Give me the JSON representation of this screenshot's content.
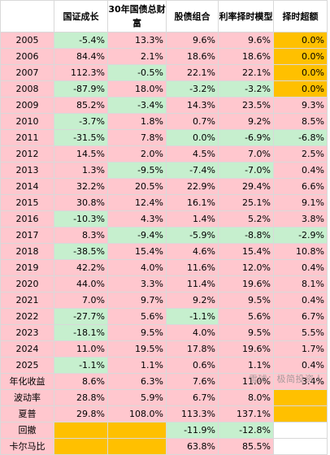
{
  "headers": [
    "",
    "国证成长",
    "30年国债总财富",
    "股债组合",
    "利率择时模型",
    "择时超额"
  ],
  "years": [
    {
      "year": "2005",
      "cells": [
        "-5.4%",
        "13.3%",
        "9.6%",
        "9.6%",
        "0.0%"
      ]
    },
    {
      "year": "2006",
      "cells": [
        "84.4%",
        "2.1%",
        "18.6%",
        "18.6%",
        "0.0%"
      ]
    },
    {
      "year": "2007",
      "cells": [
        "112.3%",
        "-0.5%",
        "22.1%",
        "22.1%",
        "0.0%"
      ]
    },
    {
      "year": "2008",
      "cells": [
        "-87.9%",
        "18.0%",
        "-3.2%",
        "-3.2%",
        "0.0%"
      ]
    },
    {
      "year": "2009",
      "cells": [
        "85.2%",
        "-3.4%",
        "14.3%",
        "23.5%",
        "9.3%"
      ]
    },
    {
      "year": "2010",
      "cells": [
        "-3.7%",
        "1.8%",
        "0.7%",
        "9.2%",
        "8.5%"
      ]
    },
    {
      "year": "2011",
      "cells": [
        "-31.5%",
        "7.8%",
        "0.0%",
        "-6.9%",
        "-6.8%"
      ]
    },
    {
      "year": "2012",
      "cells": [
        "14.5%",
        "2.0%",
        "4.5%",
        "7.0%",
        "2.5%"
      ]
    },
    {
      "year": "2013",
      "cells": [
        "1.3%",
        "-9.5%",
        "-7.4%",
        "-7.0%",
        "0.4%"
      ]
    },
    {
      "year": "2014",
      "cells": [
        "32.2%",
        "20.5%",
        "22.9%",
        "29.4%",
        "6.6%"
      ]
    },
    {
      "year": "2015",
      "cells": [
        "30.8%",
        "12.4%",
        "16.1%",
        "25.1%",
        "9.1%"
      ]
    },
    {
      "year": "2016",
      "cells": [
        "-10.3%",
        "4.3%",
        "1.4%",
        "5.2%",
        "3.8%"
      ]
    },
    {
      "year": "2017",
      "cells": [
        "8.3%",
        "-9.4%",
        "-5.9%",
        "-8.8%",
        "-2.9%"
      ]
    },
    {
      "year": "2018",
      "cells": [
        "-38.5%",
        "15.4%",
        "4.6%",
        "15.4%",
        "10.8%"
      ]
    },
    {
      "year": "2019",
      "cells": [
        "42.2%",
        "4.0%",
        "11.6%",
        "12.0%",
        "0.4%"
      ]
    },
    {
      "year": "2020",
      "cells": [
        "44.0%",
        "3.3%",
        "11.4%",
        "19.6%",
        "8.1%"
      ]
    },
    {
      "year": "2021",
      "cells": [
        "7.0%",
        "9.7%",
        "9.2%",
        "9.5%",
        "0.4%"
      ]
    },
    {
      "year": "2022",
      "cells": [
        "-27.7%",
        "5.6%",
        "-1.1%",
        "5.6%",
        "6.7%"
      ]
    },
    {
      "year": "2023",
      "cells": [
        "-18.1%",
        "9.5%",
        "4.0%",
        "9.5%",
        "5.5%"
      ]
    },
    {
      "year": "2024",
      "cells": [
        "11.0%",
        "19.5%",
        "17.8%",
        "19.6%",
        "1.7%"
      ]
    },
    {
      "year": "2025",
      "cells": [
        "-1.1%",
        "1.1%",
        "0.6%",
        "1.1%",
        "0.4%"
      ]
    }
  ],
  "summary": [
    {
      "label": "年化收益",
      "cells": [
        "8.6%",
        "6.3%",
        "7.6%",
        "11.0%",
        "3.4%"
      ]
    },
    {
      "label": "波动率",
      "cells": [
        "28.8%",
        "5.9%",
        "6.7%",
        "8.0%",
        ""
      ]
    },
    {
      "label": "夏普",
      "cells": [
        "29.8%",
        "108.0%",
        "113.3%",
        "137.1%",
        ""
      ]
    },
    {
      "label": "回撤",
      "cells": [
        "",
        "",
        "-11.9%",
        "-12.8%",
        ""
      ]
    },
    {
      "label": "卡尔马比",
      "cells": [
        "",
        "",
        "63.8%",
        "85.5%",
        ""
      ]
    }
  ],
  "colors": {
    "pink": "#ffc7ce",
    "green": "#c6efce",
    "orange": "#ffc000",
    "white": "#ffffff"
  },
  "watermark": "雪球：极简投资人"
}
